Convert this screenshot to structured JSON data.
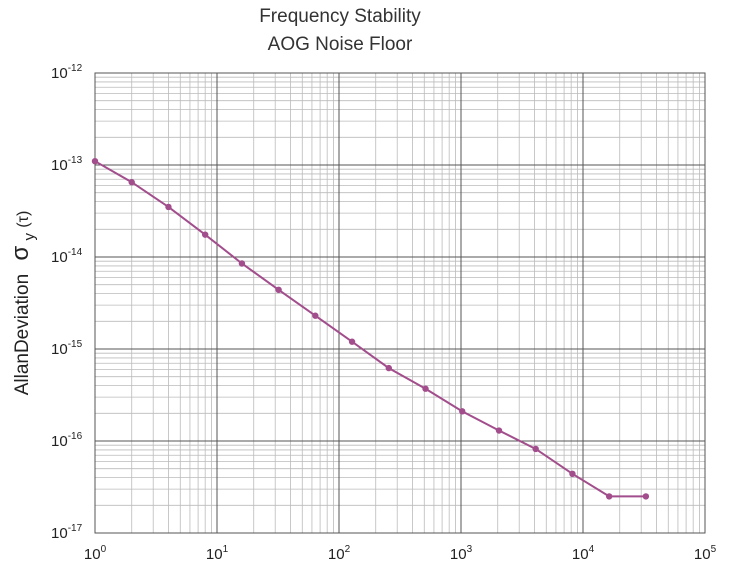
{
  "chart_data": {
    "type": "line",
    "title": "Frequency Stability",
    "subtitle": "AOG Noise Floor",
    "xlabel": "",
    "ylabel": "AllanDeviation",
    "ylabel_symbol": "σ",
    "ylabel_subscript": "y",
    "ylabel_arg": "(τ)",
    "xscale": "log",
    "yscale": "log",
    "xlim": [
      1,
      100000
    ],
    "ylim": [
      1e-17,
      1e-12
    ],
    "grid": true,
    "legend": "none",
    "x_ticks": [
      {
        "base": "10",
        "exp": "0"
      },
      {
        "base": "10",
        "exp": "1"
      },
      {
        "base": "10",
        "exp": "2"
      },
      {
        "base": "10",
        "exp": "3"
      },
      {
        "base": "10",
        "exp": "4"
      },
      {
        "base": "10",
        "exp": "5"
      }
    ],
    "y_ticks": [
      {
        "base": "10",
        "exp": "-12"
      },
      {
        "base": "10",
        "exp": "-13"
      },
      {
        "base": "10",
        "exp": "-14"
      },
      {
        "base": "10",
        "exp": "-15"
      },
      {
        "base": "10",
        "exp": "-16"
      },
      {
        "base": "10",
        "exp": "-17"
      }
    ],
    "series": [
      {
        "color": "#a24d8c",
        "x": [
          1,
          2,
          4,
          8,
          16,
          32,
          64,
          128,
          256,
          512,
          1024,
          2048,
          4096,
          8192,
          16384,
          32768
        ],
        "y": [
          1.1e-13,
          6.5e-14,
          3.5e-14,
          1.75e-14,
          8.5e-15,
          4.4e-15,
          2.3e-15,
          1.2e-15,
          6.2e-16,
          3.7e-16,
          2.1e-16,
          1.3e-16,
          8.2e-17,
          4.4e-17,
          2.5e-17,
          2.5e-17
        ]
      }
    ]
  }
}
